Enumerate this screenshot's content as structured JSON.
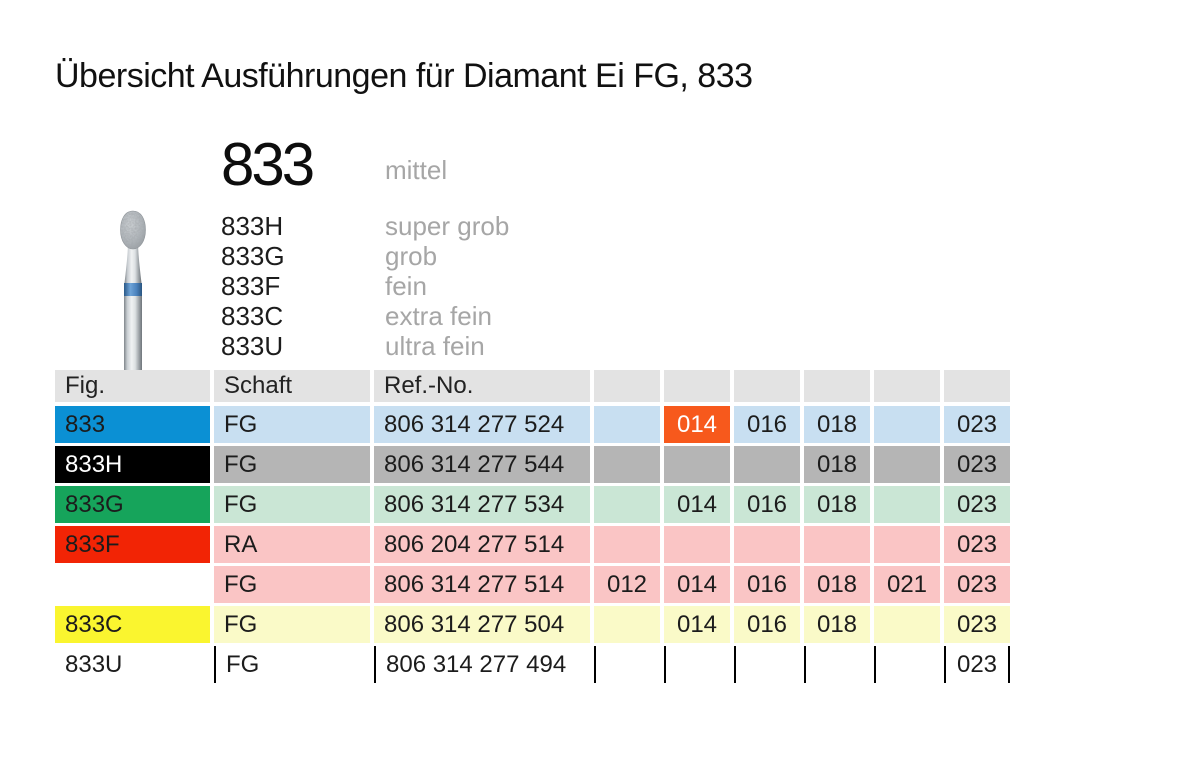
{
  "page": {
    "title": "Übersicht Ausführungen für Diamant Ei FG, 833"
  },
  "product": {
    "code": "833",
    "grade": "mittel",
    "variants": [
      {
        "code": "833H",
        "grade": "super grob"
      },
      {
        "code": "833G",
        "grade": "grob"
      },
      {
        "code": "833F",
        "grade": "fein"
      },
      {
        "code": "833C",
        "grade": "extra fein"
      },
      {
        "code": "833U",
        "grade": "ultra fein"
      }
    ]
  },
  "bur": {
    "name": "diamond-bur-egg-fg",
    "shaft_light": "#eef0f2",
    "shaft_mid": "#c3c8cc",
    "shaft_dark": "#787e83",
    "band_color": "#3b70ab",
    "band_light": "#6ea3d8",
    "head_color": "#b9bec2"
  },
  "colors": {
    "blue": "#0b90d4",
    "light_blue": "#c8dff1",
    "black": "#000000",
    "gray": "#b5b5b5",
    "green": "#16a45b",
    "light_green": "#cae6d5",
    "red": "#f22405",
    "light_red": "#fac5c5",
    "yellow": "#faf52f",
    "light_yellow": "#fafac8",
    "orange": "#f7591c",
    "header_gray": "#e3e3e3",
    "text_dark": "#1c1c1c",
    "text_gray": "#a6a6a6",
    "white": "#ffffff"
  },
  "table": {
    "headers": {
      "fig": "Fig.",
      "schaft": "Schaft",
      "ref": "Ref.-No."
    },
    "size_column_count": 6,
    "rows": [
      {
        "fig": "833",
        "fig_bg": "blue",
        "fig_color": "dark",
        "cell_bg": "light_red_NOTUSED",
        "bg": "light_blue",
        "schaft": "FG",
        "ref": "806 314 277 524",
        "sizes": [
          "",
          "014",
          "016",
          "018",
          "",
          "023"
        ],
        "highlight_index": 1
      },
      {
        "fig": "833H",
        "fig_bg": "black",
        "fig_color": "white",
        "bg": "gray",
        "schaft": "FG",
        "ref": "806 314 277 544",
        "sizes": [
          "",
          "",
          "",
          "018",
          "",
          "023"
        ]
      },
      {
        "fig": "833G",
        "fig_bg": "green",
        "fig_color": "dark",
        "bg": "light_green",
        "schaft": "FG",
        "ref": "806 314 277 534",
        "sizes": [
          "",
          "014",
          "016",
          "018",
          "",
          "023"
        ]
      },
      {
        "fig": "833F",
        "fig_bg": "red",
        "fig_color": "dark",
        "bg": "light_red",
        "schaft": "RA",
        "ref": "806 204 277 514",
        "sizes": [
          "",
          "",
          "",
          "",
          "",
          "023"
        ]
      },
      {
        "fig": "",
        "fig_bg": "none",
        "fig_color": "dark",
        "bg": "light_red",
        "schaft": "FG",
        "ref": "806 314 277 514",
        "sizes": [
          "012",
          "014",
          "016",
          "018",
          "021",
          "023"
        ]
      },
      {
        "fig": "833C",
        "fig_bg": "yellow",
        "fig_color": "dark",
        "bg": "light_yellow",
        "schaft": "FG",
        "ref": "806 314 277 504",
        "sizes": [
          "",
          "014",
          "016",
          "018",
          "",
          "023"
        ]
      },
      {
        "fig": "833U",
        "fig_bg": "none",
        "fig_color": "dark",
        "bg": "none",
        "schaft": "FG",
        "ref": "806 314 277 494",
        "sizes": [
          "",
          "",
          "",
          "",
          "",
          "023"
        ],
        "separators": true
      }
    ]
  }
}
